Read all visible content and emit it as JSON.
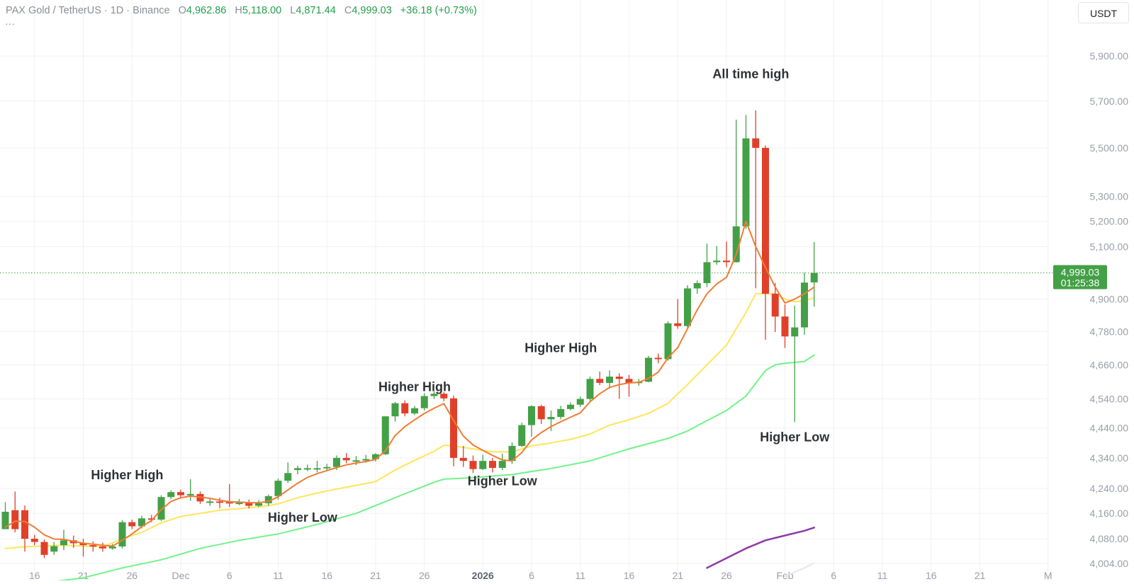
{
  "legend": {
    "symbol": "PAX Gold / TetherUS · 1D · Binance",
    "open_key": "O",
    "open": "4,962.86",
    "high_key": "H",
    "high": "5,118.00",
    "low_key": "L",
    "low": "4,871.44",
    "close_key": "C",
    "close": "4,999.03",
    "change": "+36.18 (+0.73%)",
    "more": "···"
  },
  "currency_button": "USDT",
  "price_tag": {
    "price": "4,999.03",
    "countdown": "01:25:38",
    "value": 4999.03
  },
  "colors": {
    "up": "#43a047",
    "down": "#e0402a",
    "ma_fast": "#f07c33",
    "ma_mid": "#ffe559",
    "ma_slow": "#72f28a",
    "ma_long": "#8e3aa8",
    "tag": "#43a047",
    "background": "#ffffff"
  },
  "chart_data": {
    "type": "candlestick",
    "ylim": [
      3995,
      6000
    ],
    "y_scale": "log",
    "grid": true,
    "x_ticks": [
      {
        "label": "16",
        "i": 3
      },
      {
        "label": "21",
        "i": 8
      },
      {
        "label": "26",
        "i": 13
      },
      {
        "label": "Dec",
        "i": 18
      },
      {
        "label": "6",
        "i": 23
      },
      {
        "label": "11",
        "i": 28
      },
      {
        "label": "16",
        "i": 33
      },
      {
        "label": "21",
        "i": 38
      },
      {
        "label": "26",
        "i": 43
      },
      {
        "label": "2026",
        "i": 49
      },
      {
        "label": "6",
        "i": 54
      },
      {
        "label": "11",
        "i": 59
      },
      {
        "label": "16",
        "i": 64
      },
      {
        "label": "21",
        "i": 69
      },
      {
        "label": "26",
        "i": 74
      },
      {
        "label": "Feb",
        "i": 80
      },
      {
        "label": "6",
        "i": 85
      },
      {
        "label": "11",
        "i": 90
      },
      {
        "label": "16",
        "i": 95
      },
      {
        "label": "21",
        "i": 100
      },
      {
        "label": "M",
        "i": 107
      }
    ],
    "y_ticks": [
      {
        "label": "5,900.00",
        "value": 5900
      },
      {
        "label": "5,700.00",
        "value": 5700
      },
      {
        "label": "5,500.00",
        "value": 5500
      },
      {
        "label": "5,300.00",
        "value": 5300
      },
      {
        "label": "5,200.00",
        "value": 5200
      },
      {
        "label": "5,100.00",
        "value": 5100
      },
      {
        "label": "4,900.00",
        "value": 4900
      },
      {
        "label": "4,780.00",
        "value": 4780
      },
      {
        "label": "4,660.00",
        "value": 4660
      },
      {
        "label": "4,540.00",
        "value": 4540
      },
      {
        "label": "4,440.00",
        "value": 4440
      },
      {
        "label": "4,340.00",
        "value": 4340
      },
      {
        "label": "4,240.00",
        "value": 4240
      },
      {
        "label": "4,160.00",
        "value": 4160
      },
      {
        "label": "4,080.00",
        "value": 4080
      },
      {
        "label": "4,004.00",
        "value": 4004
      }
    ],
    "candles": [
      [
        0,
        4110,
        4165,
        4196,
        4110
      ],
      [
        1,
        4170,
        4110,
        4230,
        4100
      ],
      [
        2,
        4170,
        4080,
        4185,
        4040
      ],
      [
        3,
        4080,
        4070,
        4092,
        4060
      ],
      [
        4,
        4070,
        4030,
        4078,
        4020
      ],
      [
        5,
        4040,
        4057,
        4070,
        4030
      ],
      [
        6,
        4060,
        4075,
        4108,
        4045
      ],
      [
        7,
        4075,
        4066,
        4090,
        4052
      ],
      [
        8,
        4066,
        4060,
        4080,
        4025
      ],
      [
        9,
        4060,
        4056,
        4072,
        4040
      ],
      [
        10,
        4056,
        4050,
        4068,
        4040
      ],
      [
        11,
        4050,
        4056,
        4064,
        4046
      ],
      [
        12,
        4056,
        4132,
        4138,
        4050
      ],
      [
        13,
        4132,
        4119,
        4140,
        4110
      ],
      [
        14,
        4119,
        4144,
        4152,
        4112
      ],
      [
        15,
        4144,
        4140,
        4155,
        4132
      ],
      [
        16,
        4140,
        4212,
        4218,
        4136
      ],
      [
        17,
        4212,
        4228,
        4234,
        4205
      ],
      [
        18,
        4228,
        4218,
        4236,
        4210
      ],
      [
        19,
        4218,
        4222,
        4270,
        4200
      ],
      [
        20,
        4222,
        4198,
        4230,
        4190
      ],
      [
        21,
        4198,
        4198,
        4210,
        4184
      ],
      [
        22,
        4198,
        4196,
        4210,
        4176
      ],
      [
        23,
        4196,
        4194,
        4254,
        4180
      ],
      [
        24,
        4194,
        4194,
        4206,
        4186
      ],
      [
        25,
        4194,
        4184,
        4204,
        4176
      ],
      [
        26,
        4184,
        4192,
        4202,
        4180
      ],
      [
        27,
        4192,
        4215,
        4220,
        4184
      ],
      [
        28,
        4215,
        4265,
        4272,
        4204
      ],
      [
        29,
        4265,
        4290,
        4325,
        4258
      ],
      [
        30,
        4300,
        4306,
        4314,
        4286
      ],
      [
        31,
        4306,
        4306,
        4318,
        4296
      ],
      [
        32,
        4306,
        4306,
        4330,
        4292
      ],
      [
        33,
        4306,
        4310,
        4320,
        4298
      ],
      [
        34,
        4310,
        4340,
        4348,
        4300
      ],
      [
        35,
        4340,
        4332,
        4356,
        4322
      ],
      [
        36,
        4332,
        4332,
        4346,
        4316
      ],
      [
        37,
        4332,
        4336,
        4350,
        4324
      ],
      [
        38,
        4336,
        4352,
        4356,
        4328
      ],
      [
        39,
        4352,
        4480,
        4480,
        4350
      ],
      [
        40,
        4480,
        4525,
        4530,
        4462
      ],
      [
        41,
        4525,
        4490,
        4535,
        4480
      ],
      [
        42,
        4490,
        4508,
        4516,
        4484
      ],
      [
        43,
        4508,
        4550,
        4560,
        4500
      ],
      [
        44,
        4550,
        4558,
        4566,
        4540
      ],
      [
        45,
        4558,
        4542,
        4564,
        4532
      ],
      [
        46,
        4542,
        4340,
        4552,
        4312
      ],
      [
        47,
        4340,
        4330,
        4380,
        4310
      ],
      [
        48,
        4330,
        4303,
        4348,
        4290
      ],
      [
        49,
        4303,
        4330,
        4350,
        4300
      ],
      [
        50,
        4330,
        4307,
        4340,
        4292
      ],
      [
        51,
        4307,
        4330,
        4354,
        4300
      ],
      [
        52,
        4330,
        4380,
        4392,
        4320
      ],
      [
        53,
        4380,
        4450,
        4458,
        4376
      ],
      [
        54,
        4450,
        4515,
        4518,
        4410
      ],
      [
        55,
        4515,
        4470,
        4520,
        4454
      ],
      [
        56,
        4470,
        4478,
        4500,
        4430
      ],
      [
        57,
        4478,
        4505,
        4516,
        4470
      ],
      [
        58,
        4505,
        4520,
        4528,
        4500
      ],
      [
        59,
        4520,
        4540,
        4548,
        4512
      ],
      [
        60,
        4540,
        4610,
        4618,
        4530
      ],
      [
        61,
        4610,
        4596,
        4636,
        4588
      ],
      [
        62,
        4596,
        4618,
        4640,
        4576
      ],
      [
        63,
        4618,
        4610,
        4630,
        4540
      ],
      [
        64,
        4610,
        4595,
        4624,
        4548
      ],
      [
        65,
        4595,
        4600,
        4610,
        4586
      ],
      [
        66,
        4600,
        4685,
        4692,
        4598
      ],
      [
        67,
        4685,
        4680,
        4700,
        4665
      ],
      [
        68,
        4680,
        4810,
        4818,
        4675
      ],
      [
        69,
        4810,
        4800,
        4900,
        4790
      ],
      [
        70,
        4800,
        4940,
        4952,
        4792
      ],
      [
        71,
        4940,
        4960,
        4970,
        4920
      ],
      [
        72,
        4960,
        5040,
        5112,
        4945
      ],
      [
        73,
        5040,
        5046,
        5102,
        5030
      ],
      [
        74,
        5046,
        5040,
        5120,
        5020
      ],
      [
        75,
        5040,
        5180,
        5620,
        5038
      ],
      [
        76,
        5180,
        5540,
        5640,
        5170
      ],
      [
        77,
        5540,
        5500,
        5660,
        4940
      ],
      [
        78,
        5500,
        4920,
        5510,
        4750
      ],
      [
        79,
        4920,
        4835,
        4960,
        4778
      ],
      [
        80,
        4835,
        4762,
        4880,
        4720
      ],
      [
        81,
        4762,
        4795,
        4875,
        4460
      ],
      [
        82,
        4795,
        4962,
        5000,
        4768
      ],
      [
        83,
        4962.86,
        4999.03,
        5118.0,
        4871.44
      ]
    ],
    "ma_fast": [
      [
        0,
        4116
      ],
      [
        1,
        4135
      ],
      [
        2,
        4134
      ],
      [
        3,
        4116
      ],
      [
        4,
        4092
      ],
      [
        5,
        4079
      ],
      [
        6,
        4078
      ],
      [
        7,
        4072
      ],
      [
        8,
        4066
      ],
      [
        9,
        4063
      ],
      [
        10,
        4060
      ],
      [
        11,
        4057
      ],
      [
        12,
        4075
      ],
      [
        13,
        4095
      ],
      [
        14,
        4118
      ],
      [
        15,
        4137
      ],
      [
        16,
        4172
      ],
      [
        17,
        4198
      ],
      [
        18,
        4210
      ],
      [
        19,
        4215
      ],
      [
        20,
        4212
      ],
      [
        21,
        4208
      ],
      [
        22,
        4202
      ],
      [
        23,
        4197
      ],
      [
        24,
        4196
      ],
      [
        25,
        4194
      ],
      [
        26,
        4194
      ],
      [
        27,
        4198
      ],
      [
        28,
        4213
      ],
      [
        29,
        4235
      ],
      [
        30,
        4257
      ],
      [
        31,
        4276
      ],
      [
        32,
        4288
      ],
      [
        33,
        4298
      ],
      [
        34,
        4308
      ],
      [
        35,
        4317
      ],
      [
        36,
        4323
      ],
      [
        37,
        4328
      ],
      [
        38,
        4335
      ],
      [
        39,
        4364
      ],
      [
        40,
        4415
      ],
      [
        41,
        4445
      ],
      [
        42,
        4468
      ],
      [
        43,
        4490
      ],
      [
        44,
        4508
      ],
      [
        45,
        4524
      ],
      [
        46,
        4466
      ],
      [
        47,
        4413
      ],
      [
        48,
        4383
      ],
      [
        49,
        4365
      ],
      [
        50,
        4348
      ],
      [
        51,
        4333
      ],
      [
        52,
        4330
      ],
      [
        53,
        4358
      ],
      [
        54,
        4400
      ],
      [
        55,
        4425
      ],
      [
        56,
        4445
      ],
      [
        57,
        4462
      ],
      [
        58,
        4477
      ],
      [
        59,
        4492
      ],
      [
        60,
        4530
      ],
      [
        61,
        4558
      ],
      [
        62,
        4580
      ],
      [
        63,
        4590
      ],
      [
        64,
        4596
      ],
      [
        65,
        4598
      ],
      [
        66,
        4612
      ],
      [
        67,
        4634
      ],
      [
        68,
        4685
      ],
      [
        69,
        4722
      ],
      [
        70,
        4790
      ],
      [
        71,
        4860
      ],
      [
        72,
        4920
      ],
      [
        73,
        4957
      ],
      [
        74,
        4982
      ],
      [
        75,
        5070
      ],
      [
        76,
        5200
      ],
      [
        77,
        5100
      ],
      [
        78,
        5020
      ],
      [
        79,
        4945
      ],
      [
        80,
        4885
      ],
      [
        81,
        4900
      ],
      [
        82,
        4920
      ],
      [
        83,
        4945
      ]
    ],
    "ma_mid": [
      [
        0,
        4050
      ],
      [
        2,
        4055
      ],
      [
        4,
        4058
      ],
      [
        6,
        4060
      ],
      [
        8,
        4057
      ],
      [
        10,
        4055
      ],
      [
        12,
        4080
      ],
      [
        14,
        4100
      ],
      [
        16,
        4130
      ],
      [
        18,
        4150
      ],
      [
        20,
        4160
      ],
      [
        22,
        4170
      ],
      [
        24,
        4175
      ],
      [
        26,
        4180
      ],
      [
        28,
        4190
      ],
      [
        30,
        4210
      ],
      [
        32,
        4225
      ],
      [
        34,
        4238
      ],
      [
        36,
        4250
      ],
      [
        38,
        4262
      ],
      [
        40,
        4300
      ],
      [
        42,
        4332
      ],
      [
        44,
        4362
      ],
      [
        45,
        4382
      ],
      [
        46,
        4380
      ],
      [
        48,
        4370
      ],
      [
        50,
        4360
      ],
      [
        52,
        4360
      ],
      [
        54,
        4380
      ],
      [
        56,
        4390
      ],
      [
        58,
        4402
      ],
      [
        60,
        4420
      ],
      [
        62,
        4450
      ],
      [
        64,
        4468
      ],
      [
        66,
        4490
      ],
      [
        68,
        4525
      ],
      [
        70,
        4590
      ],
      [
        72,
        4660
      ],
      [
        74,
        4730
      ],
      [
        75,
        4790
      ],
      [
        76,
        4850
      ],
      [
        77,
        4920
      ],
      [
        78,
        4920
      ],
      [
        79,
        4920
      ],
      [
        80,
        4900
      ],
      [
        81,
        4890
      ],
      [
        82,
        4893
      ],
      [
        83,
        4905
      ]
    ],
    "ma_slow": [
      [
        0,
        3920
      ],
      [
        4,
        3945
      ],
      [
        8,
        3960
      ],
      [
        12,
        3990
      ],
      [
        16,
        4015
      ],
      [
        20,
        4050
      ],
      [
        24,
        4075
      ],
      [
        28,
        4095
      ],
      [
        32,
        4125
      ],
      [
        36,
        4160
      ],
      [
        40,
        4210
      ],
      [
        44,
        4260
      ],
      [
        45,
        4270
      ],
      [
        48,
        4275
      ],
      [
        52,
        4285
      ],
      [
        56,
        4305
      ],
      [
        60,
        4330
      ],
      [
        64,
        4370
      ],
      [
        68,
        4405
      ],
      [
        70,
        4430
      ],
      [
        72,
        4465
      ],
      [
        74,
        4500
      ],
      [
        76,
        4550
      ],
      [
        78,
        4640
      ],
      [
        79,
        4660
      ],
      [
        80,
        4665
      ],
      [
        82,
        4672
      ],
      [
        83,
        4695
      ]
    ],
    "ma_long": [
      [
        72,
        3990
      ],
      [
        74,
        4020
      ],
      [
        76,
        4050
      ],
      [
        78,
        4075
      ],
      [
        80,
        4090
      ],
      [
        82,
        4105
      ],
      [
        83,
        4115
      ]
    ],
    "ma_faint": [
      [
        80,
        3965
      ],
      [
        82,
        3990
      ],
      [
        83,
        4005
      ]
    ],
    "annotations": [
      {
        "label": "All time high",
        "i": 76.5,
        "value": 5800
      },
      {
        "label": "Higher High",
        "i": 12.5,
        "value": 4270
      },
      {
        "label": "Higher Low",
        "i": 30.5,
        "value": 4134
      },
      {
        "label": "Higher High",
        "i": 42,
        "value": 4567
      },
      {
        "label": "Higher Low",
        "i": 51,
        "value": 4250
      },
      {
        "label": "Higher High",
        "i": 57,
        "value": 4705
      },
      {
        "label": "Higher Low",
        "i": 81,
        "value": 4395
      }
    ]
  }
}
